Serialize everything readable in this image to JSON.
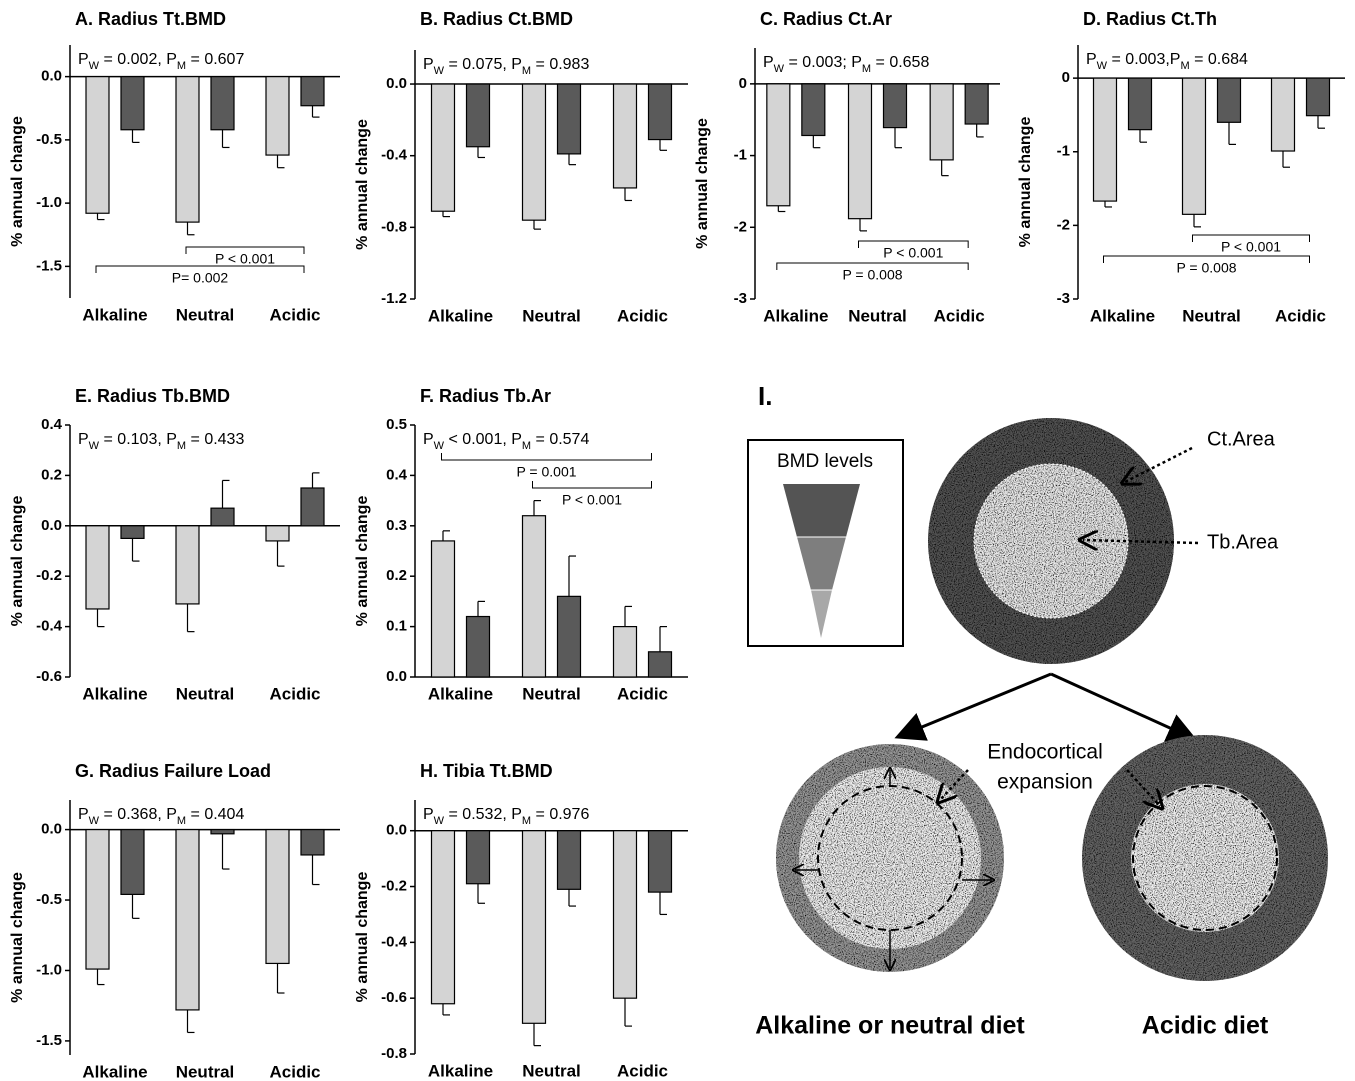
{
  "chart_data": [
    {
      "type": "bar",
      "title": "A. Radius Tt.BMD",
      "subtitle": [
        "P",
        "W",
        " = 0.002, P",
        "M",
        " = 0.607"
      ],
      "ylabel": "% annual change",
      "categories": [
        "Alkaline",
        "Neutral",
        "Acidic"
      ],
      "series": [
        {
          "color": "#d4d4d4",
          "values": [
            -1.08,
            -1.15,
            -0.62
          ],
          "errors": [
            0.05,
            0.1,
            0.1
          ]
        },
        {
          "color": "#5a5a5a",
          "values": [
            -0.42,
            -0.42,
            -0.23
          ],
          "errors": [
            0.1,
            0.14,
            0.09
          ]
        }
      ],
      "ylim": [
        -1.75,
        0.25
      ],
      "yticks": [
        {
          "value": 0,
          "label": "0.0"
        },
        -0.5,
        {
          "value": -1,
          "label": "-1.0"
        },
        -1.5
      ],
      "brackets": [
        {
          "text": "P < 0.001",
          "from": 1,
          "to": 2
        },
        {
          "text": "P= 0.002",
          "from": 0,
          "to": 2
        }
      ]
    },
    {
      "type": "bar",
      "title": "B. Radius Ct.BMD",
      "subtitle": [
        "P",
        "W",
        " = 0.075, P",
        "M",
        " = 0.983"
      ],
      "ylabel": "% annual change",
      "categories": [
        "Alkaline",
        "Neutral",
        "Acidic"
      ],
      "series": [
        {
          "color": "#d4d4d4",
          "values": [
            -0.71,
            -0.76,
            -0.58
          ],
          "errors": [
            0.03,
            0.05,
            0.07
          ]
        },
        {
          "color": "#5a5a5a",
          "values": [
            -0.35,
            -0.39,
            -0.31
          ],
          "errors": [
            0.06,
            0.06,
            0.06
          ]
        }
      ],
      "ylim": [
        -1.2,
        0.19
      ],
      "yticks": [
        {
          "value": 0,
          "label": "0.0"
        },
        -0.4,
        -0.8,
        -1.2
      ]
    },
    {
      "type": "bar",
      "title": "C. Radius Ct.Ar",
      "subtitle": [
        "P",
        "W",
        " = 0.003; P",
        "M",
        " = 0.658"
      ],
      "ylabel": "% annual change",
      "categories": [
        "Alkaline",
        "Neutral",
        "Acidic"
      ],
      "series": [
        {
          "color": "#d4d4d4",
          "values": [
            -1.7,
            -1.88,
            -1.06
          ],
          "errors": [
            0.08,
            0.17,
            0.22
          ]
        },
        {
          "color": "#5a5a5a",
          "values": [
            -0.72,
            -0.61,
            -0.56
          ],
          "errors": [
            0.17,
            0.28,
            0.18
          ]
        }
      ],
      "ylim": [
        -3,
        0.5
      ],
      "yticks": [
        0,
        -1,
        -2,
        -3
      ],
      "brackets": [
        {
          "text": "P < 0.001",
          "from": 1,
          "to": 2
        },
        {
          "text": "P = 0.008",
          "from": 0,
          "to": 2
        }
      ]
    },
    {
      "type": "bar",
      "title": "D. Radius Ct.Th",
      "subtitle": [
        "P",
        "W",
        " = 0.003,P",
        "M",
        " = 0.684"
      ],
      "ylabel": "% annual change",
      "categories": [
        "Alkaline",
        "Neutral",
        "Acidic"
      ],
      "series": [
        {
          "color": "#d4d4d4",
          "values": [
            -1.67,
            -1.85,
            -0.99
          ],
          "errors": [
            0.08,
            0.17,
            0.22
          ]
        },
        {
          "color": "#5a5a5a",
          "values": [
            -0.7,
            -0.6,
            -0.51
          ],
          "errors": [
            0.17,
            0.3,
            0.17
          ]
        }
      ],
      "ylim": [
        -3,
        0.45
      ],
      "yticks": [
        0,
        -1,
        -2,
        -3
      ],
      "brackets": [
        {
          "text": "P < 0.001",
          "from": 1,
          "to": 2
        },
        {
          "text": "P = 0.008",
          "from": 0,
          "to": 2
        }
      ]
    },
    {
      "type": "bar",
      "title": "E. Radius Tb.BMD",
      "subtitle": [
        "P",
        "W",
        " = 0.103, P",
        "M",
        " = 0.433"
      ],
      "ylabel": "% annual change",
      "categories": [
        "Alkaline",
        "Neutral",
        "Acidic"
      ],
      "series": [
        {
          "color": "#d4d4d4",
          "values": [
            -0.33,
            -0.31,
            -0.06
          ],
          "errors": [
            0.07,
            0.11,
            0.1
          ]
        },
        {
          "color": "#5a5a5a",
          "values": [
            -0.05,
            0.07,
            0.15
          ],
          "errors": [
            0.09,
            0.11,
            0.06
          ]
        }
      ],
      "ylim": [
        -0.6,
        0.4
      ],
      "yticks": [
        0.4,
        0.2,
        {
          "value": 0,
          "label": "0.0"
        },
        -0.2,
        -0.4,
        -0.6
      ]
    },
    {
      "type": "bar",
      "title": "F. Radius Tb.Ar",
      "subtitle": [
        "P",
        "W",
        " < 0.001, P",
        "M",
        " = 0.574"
      ],
      "ylabel": "% annual change",
      "categories": [
        "Alkaline",
        "Neutral",
        "Acidic"
      ],
      "series": [
        {
          "color": "#d4d4d4",
          "values": [
            0.27,
            0.32,
            0.1
          ],
          "errors": [
            0.02,
            0.03,
            0.04
          ]
        },
        {
          "color": "#5a5a5a",
          "values": [
            0.12,
            0.16,
            0.05
          ],
          "errors": [
            0.03,
            0.08,
            0.05
          ]
        }
      ],
      "ylim": [
        0,
        0.5
      ],
      "yticks": [
        0.5,
        0.4,
        0.3,
        0.2,
        0.1,
        {
          "value": 0,
          "label": "0.0"
        }
      ],
      "brackets": [
        {
          "text": "P = 0.001",
          "from": 0,
          "to": 2
        },
        {
          "text": "P < 0.001",
          "from": 1,
          "to": 2
        }
      ]
    },
    {
      "type": "bar",
      "title": "G. Radius Failure Load",
      "subtitle": [
        "P",
        "W",
        " = 0.368, P",
        "M",
        " = 0.404"
      ],
      "ylabel": "% annual change",
      "categories": [
        "Alkaline",
        "Neutral",
        "Acidic"
      ],
      "series": [
        {
          "color": "#d4d4d4",
          "values": [
            -0.99,
            -1.28,
            -0.95
          ],
          "errors": [
            0.11,
            0.16,
            0.21
          ]
        },
        {
          "color": "#5a5a5a",
          "values": [
            -0.46,
            -0.03,
            -0.18
          ],
          "errors": [
            0.17,
            0.25,
            0.21
          ]
        }
      ],
      "ylim": [
        -1.6,
        0.21
      ],
      "yticks": [
        {
          "value": 0,
          "label": "0.0"
        },
        -0.5,
        {
          "value": -1,
          "label": "-1.0"
        },
        -1.5
      ]
    },
    {
      "type": "bar",
      "title": "H. Tibia Tt.BMD",
      "subtitle": [
        "P",
        "W",
        " = 0.532, P",
        "M",
        " = 0.976"
      ],
      "ylabel": "% annual change",
      "categories": [
        "Alkaline",
        "Neutral",
        "Acidic"
      ],
      "series": [
        {
          "color": "#d4d4d4",
          "values": [
            -0.62,
            -0.69,
            -0.6
          ],
          "errors": [
            0.04,
            0.08,
            0.1
          ]
        },
        {
          "color": "#5a5a5a",
          "values": [
            -0.19,
            -0.21,
            -0.22
          ],
          "errors": [
            0.07,
            0.06,
            0.08
          ]
        }
      ],
      "ylim": [
        -0.8,
        0.11
      ],
      "yticks": [
        {
          "value": 0,
          "label": "0.0"
        },
        -0.2,
        -0.4,
        -0.6,
        -0.8
      ]
    }
  ],
  "diagram": {
    "label": "I.",
    "legend_title": "BMD levels",
    "cortical": "Ct.Area",
    "trabecular": "Tb.Area",
    "expansion": [
      "Endocortical",
      "expansion"
    ],
    "left_caption": "Alkaline or neutral diet",
    "right_caption": "Acidic diet"
  }
}
